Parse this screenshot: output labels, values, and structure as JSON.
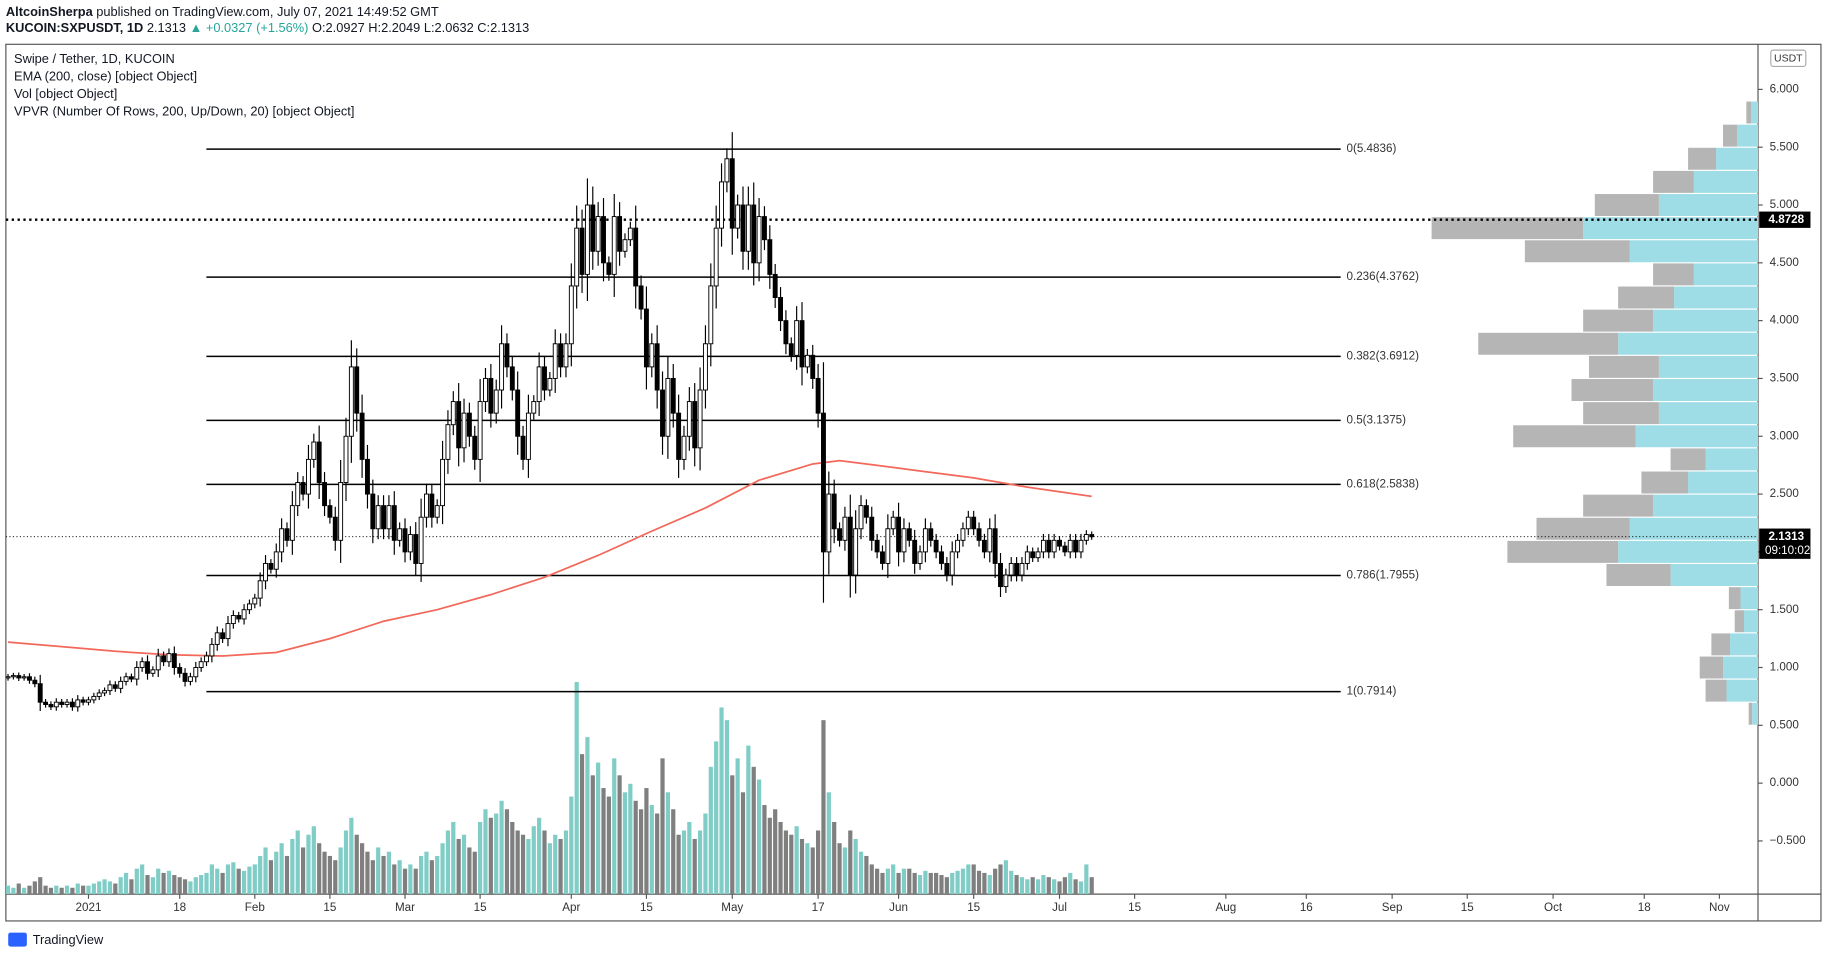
{
  "header": {
    "author": "AltcoinSherpa",
    "published": "published on TradingView.com, July 07, 2021 14:49:52 GMT",
    "symbol": "KUCOIN:SXPUSDT, 1D",
    "last": "2.1313",
    "change": "▲ +0.0327 (+1.56%)",
    "ohlc": [
      "O:2.0927",
      "H:2.2049",
      "L:2.0632",
      "C:2.1313"
    ]
  },
  "legend": [
    "Swipe / Tether, 1D, KUCOIN",
    "EMA (200, close) [object Object]",
    "Vol [object Object]",
    "VPVR (Number Of Rows, 200, Up/Down, 20) [object Object]"
  ],
  "currency": "USDT",
  "footer": "TradingView",
  "chart_data": {
    "type": "candlestick",
    "closes": [
      0.92,
      0.93,
      0.91,
      0.92,
      0.89,
      0.86,
      0.7,
      0.68,
      0.66,
      0.7,
      0.68,
      0.7,
      0.66,
      0.72,
      0.7,
      0.72,
      0.75,
      0.78,
      0.8,
      0.85,
      0.82,
      0.88,
      0.92,
      0.9,
      1.0,
      1.05,
      0.95,
      0.98,
      1.1,
      1.05,
      1.12,
      1.0,
      0.95,
      0.88,
      0.92,
      1.0,
      1.05,
      1.1,
      1.2,
      1.3,
      1.25,
      1.38,
      1.45,
      1.42,
      1.5,
      1.55,
      1.6,
      1.75,
      1.9,
      1.85,
      2.0,
      2.2,
      2.1,
      2.4,
      2.6,
      2.5,
      2.8,
      2.95,
      2.6,
      2.4,
      2.3,
      2.1,
      2.6,
      3.0,
      3.6,
      3.2,
      2.8,
      2.5,
      2.2,
      2.4,
      2.2,
      2.4,
      2.1,
      2.2,
      2.0,
      2.15,
      1.9,
      2.3,
      2.5,
      2.3,
      2.4,
      2.8,
      3.1,
      3.3,
      2.9,
      3.2,
      3.0,
      2.8,
      3.3,
      3.5,
      3.2,
      3.4,
      3.8,
      3.6,
      3.4,
      3.0,
      2.8,
      3.2,
      3.3,
      3.6,
      3.4,
      3.5,
      3.8,
      3.6,
      3.8,
      4.3,
      4.8,
      4.4,
      5.0,
      4.6,
      4.9,
      4.5,
      4.4,
      4.9,
      4.6,
      4.7,
      4.8,
      4.3,
      4.1,
      3.6,
      3.8,
      3.4,
      3.0,
      3.5,
      3.2,
      2.8,
      3.0,
      3.3,
      2.9,
      3.4,
      3.8,
      4.3,
      4.8,
      5.2,
      5.4,
      4.8,
      5.0,
      4.6,
      5.0,
      4.5,
      4.9,
      4.7,
      4.4,
      4.2,
      4.0,
      3.8,
      3.7,
      4.0,
      3.6,
      3.7,
      3.5,
      3.2,
      2.0,
      2.5,
      2.2,
      2.1,
      2.3,
      1.8,
      2.2,
      2.4,
      2.3,
      2.1,
      2.0,
      1.9,
      2.2,
      2.3,
      2.0,
      2.2,
      2.1,
      1.9,
      2.0,
      2.2,
      2.1,
      2.0,
      1.9,
      1.8,
      2.0,
      2.1,
      2.2,
      2.3,
      2.2,
      2.1,
      2.0,
      2.2,
      1.9,
      1.7,
      1.8,
      1.9,
      1.8,
      1.9,
      2.0,
      1.95,
      2.0,
      2.1,
      2.0,
      2.1,
      2.05,
      2.0,
      2.1,
      2.0,
      2.1,
      2.15,
      2.1313
    ],
    "volumes": [
      4,
      3,
      5,
      3,
      4,
      6,
      8,
      4,
      3,
      4,
      3,
      4,
      3,
      5,
      4,
      4,
      5,
      6,
      7,
      6,
      5,
      8,
      10,
      7,
      12,
      14,
      9,
      8,
      12,
      10,
      11,
      9,
      8,
      7,
      6,
      8,
      9,
      10,
      14,
      12,
      10,
      14,
      15,
      12,
      11,
      13,
      14,
      18,
      22,
      16,
      20,
      24,
      18,
      26,
      30,
      22,
      28,
      32,
      24,
      20,
      18,
      16,
      22,
      30,
      36,
      28,
      24,
      20,
      16,
      22,
      18,
      20,
      14,
      16,
      12,
      14,
      12,
      18,
      20,
      16,
      18,
      24,
      30,
      34,
      26,
      28,
      22,
      20,
      34,
      40,
      36,
      38,
      44,
      40,
      34,
      30,
      28,
      26,
      32,
      36,
      30,
      24,
      28,
      26,
      30,
      46,
      100,
      66,
      74,
      56,
      62,
      50,
      46,
      64,
      56,
      48,
      52,
      44,
      40,
      50,
      42,
      38,
      64,
      48,
      40,
      28,
      30,
      34,
      26,
      30,
      38,
      60,
      72,
      88,
      82,
      56,
      64,
      48,
      70,
      60,
      54,
      42,
      36,
      40,
      34,
      30,
      28,
      32,
      26,
      24,
      22,
      30,
      82,
      48,
      34,
      24,
      22,
      30,
      26,
      20,
      18,
      14,
      12,
      10,
      12,
      14,
      10,
      12,
      12,
      10,
      9,
      11,
      10,
      10,
      9,
      8,
      10,
      11,
      12,
      14,
      14,
      11,
      10,
      9,
      12,
      14,
      16,
      11,
      9,
      8,
      7,
      8,
      7,
      9,
      8,
      7,
      6,
      8,
      10,
      7,
      6,
      14,
      8
    ],
    "up_color": "#ffffff",
    "down_color": "#000000",
    "volume_up_color": "#7fcdc6",
    "volume_down_color": "#7f7f7f",
    "ema": {
      "color": "#f2685a",
      "x": [
        0,
        10,
        20,
        30,
        40,
        50,
        60,
        70,
        80,
        90,
        100,
        110,
        120,
        130,
        140,
        150,
        155,
        160,
        170,
        180,
        190,
        202
      ],
      "values": [
        1.22,
        1.18,
        1.14,
        1.11,
        1.1,
        1.13,
        1.25,
        1.4,
        1.5,
        1.63,
        1.78,
        1.97,
        2.18,
        2.38,
        2.62,
        2.76,
        2.79,
        2.76,
        2.7,
        2.64,
        2.56,
        2.48
      ]
    },
    "xlim": [
      -0.4,
      326.2
    ],
    "ylim": [
      -0.96,
      6.39
    ],
    "xticks": [
      {
        "value": 15,
        "label": "2021"
      },
      {
        "value": 32,
        "label": "18"
      },
      {
        "value": 46,
        "label": "Feb"
      },
      {
        "value": 60,
        "label": "15"
      },
      {
        "value": 74,
        "label": "Mar"
      },
      {
        "value": 88,
        "label": "15"
      },
      {
        "value": 105,
        "label": "Apr"
      },
      {
        "value": 119,
        "label": "15"
      },
      {
        "value": 135,
        "label": "May"
      },
      {
        "value": 151,
        "label": "17"
      },
      {
        "value": 166,
        "label": "Jun"
      },
      {
        "value": 180,
        "label": "15"
      },
      {
        "value": 196,
        "label": "Jul"
      },
      {
        "value": 210,
        "label": "15"
      },
      {
        "value": 227,
        "label": "Aug"
      },
      {
        "value": 242,
        "label": "16"
      },
      {
        "value": 258,
        "label": "Sep"
      },
      {
        "value": 272,
        "label": "15"
      },
      {
        "value": 288,
        "label": "Oct"
      },
      {
        "value": 305,
        "label": "18"
      },
      {
        "value": 319,
        "label": "Nov"
      }
    ],
    "yticks": [
      {
        "value": 6,
        "label": "6.000"
      },
      {
        "value": 5.5,
        "label": "5.500"
      },
      {
        "value": 5,
        "label": "5.000"
      },
      {
        "value": 4.5,
        "label": "4.500"
      },
      {
        "value": 4,
        "label": "4.000"
      },
      {
        "value": 3.5,
        "label": "3.500"
      },
      {
        "value": 3,
        "label": "3.000"
      },
      {
        "value": 2.5,
        "label": "2.500"
      },
      {
        "value": 2,
        "label": "2.000"
      },
      {
        "value": 1.5,
        "label": "1.500"
      },
      {
        "value": 1,
        "label": "1.000"
      },
      {
        "value": 0.5,
        "label": "0.500"
      },
      {
        "value": 0,
        "label": "0.000"
      },
      {
        "value": -0.5,
        "label": "−0.500"
      }
    ],
    "fib": [
      {
        "value": 5.4836,
        "label": "0(5.4836)"
      },
      {
        "value": 4.3762,
        "label": "0.236(4.3762)"
      },
      {
        "value": 3.6912,
        "label": "0.382(3.6912)"
      },
      {
        "value": 3.1375,
        "label": "0.5(3.1375)"
      },
      {
        "value": 2.5838,
        "label": "0.618(2.5838)"
      },
      {
        "value": 1.7955,
        "label": "0.786(1.7955)"
      },
      {
        "value": 0.7914,
        "label": "1(0.7914)"
      }
    ],
    "profile": {
      "up_color": "#9fdde6",
      "down_color": "#b5b5b5",
      "levels": [
        0.6,
        0.8,
        1.0,
        1.2,
        1.4,
        1.6,
        1.8,
        2.0,
        2.2,
        2.4,
        2.6,
        2.8,
        3.0,
        3.2,
        3.4,
        3.6,
        3.8,
        4.0,
        4.2,
        4.4,
        4.6,
        4.8,
        5.0,
        5.2,
        5.4,
        5.6,
        5.8
      ],
      "up": [
        5,
        27,
        30,
        24,
        12,
        15,
        75,
        120,
        110,
        90,
        60,
        45,
        105,
        85,
        90,
        85,
        120,
        90,
        72,
        55,
        110,
        150,
        85,
        55,
        36,
        18,
        6
      ],
      "down": [
        3,
        18,
        20,
        16,
        8,
        10,
        55,
        95,
        80,
        60,
        40,
        30,
        105,
        65,
        70,
        60,
        120,
        60,
        48,
        35,
        90,
        130,
        55,
        35,
        24,
        12,
        4
      ]
    },
    "last_price": {
      "value": 2.1313,
      "label": "2.1313"
    },
    "countdown": "09:10:02",
    "poc": {
      "value": 4.8728,
      "label": "4.8728"
    }
  }
}
